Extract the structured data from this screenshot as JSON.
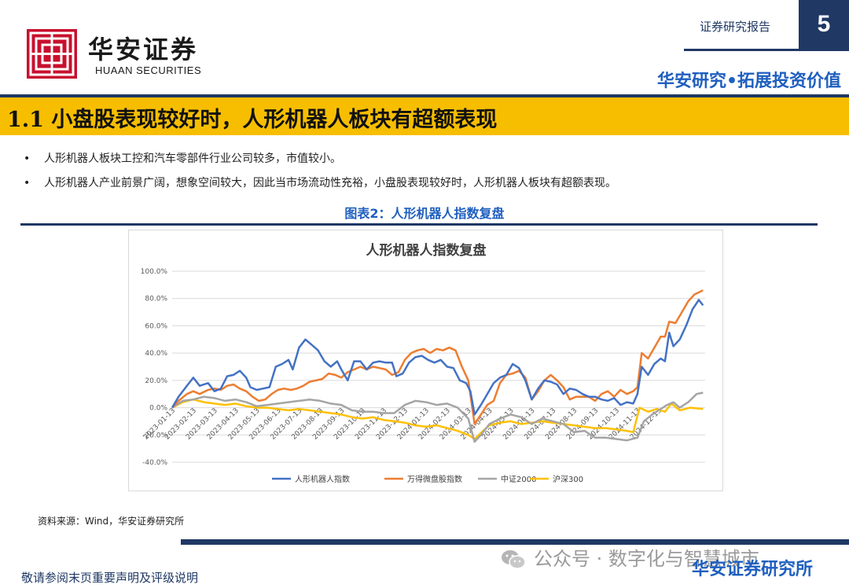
{
  "header": {
    "logo_cn": "华安证券",
    "logo_en": "HUAAN SECURITIES",
    "report_type": "证券研究报告",
    "page_number": "5",
    "slogan": "华安研究•拓展投资价值"
  },
  "section_title": "1.1 小盘股表现较好时，人形机器人板块有超额表现",
  "bullets": [
    "人形机器人板块工控和汽车零部件行业公司较多，市值较小。",
    "人形机器人产业前景广阔，想象空间较大，因此当市场流动性充裕，小盘股表现较好时，人形机器人板块有超额表现。"
  ],
  "bullet_marker": "•",
  "figure_title": "图表2：人形机器人指数复盘",
  "source": "资料来源：Wind，华安证券研究所",
  "footer": {
    "disclaimer": "敬请参阅末页重要声明及评级说明",
    "watermark": "公众号 · 数字化与智慧城市",
    "brand": "华安证券研究所"
  },
  "colors": {
    "navy": "#1f3864",
    "gold": "#f7be00",
    "blue_text": "#1f5fbf",
    "logo_red": "#c8102e"
  },
  "chart_data": {
    "type": "line",
    "title": "人形机器人指数复盘",
    "xlabel": "",
    "ylabel": "",
    "ylim": [
      -0.4,
      1.0
    ],
    "yticks": [
      -0.4,
      -0.2,
      0.0,
      0.2,
      0.4,
      0.6,
      0.8,
      1.0
    ],
    "ytick_labels": [
      "-40.0%",
      "-20.0%",
      "0.0%",
      "20.0%",
      "40.0%",
      "60.0%",
      "80.0%",
      "100.0%"
    ],
    "xtick_labels": [
      "2023-01-13",
      "2023-02-13",
      "2023-03-13",
      "2023-04-13",
      "2023-05-13",
      "2023-06-13",
      "2023-07-13",
      "2023-08-13",
      "2023-09-13",
      "2023-10-13",
      "2023-11-13",
      "2023-12-13",
      "2024-01-13",
      "2024-02-13",
      "2024-03-13",
      "2024-04-13",
      "2024-05-13",
      "2024-06-13",
      "2024-07-13",
      "2024-08-13",
      "2024-09-13",
      "2024-10-13",
      "2024-11-13",
      "2024-12-13"
    ],
    "legend_position": "bottom",
    "grid": true,
    "series": [
      {
        "name": "人形机器人指数",
        "color": "#4472c4",
        "points": [
          [
            0,
            0.0
          ],
          [
            0.3,
            0.08
          ],
          [
            0.7,
            0.16
          ],
          [
            1.0,
            0.22
          ],
          [
            1.3,
            0.16
          ],
          [
            1.7,
            0.18
          ],
          [
            2.0,
            0.12
          ],
          [
            2.3,
            0.14
          ],
          [
            2.6,
            0.23
          ],
          [
            2.9,
            0.24
          ],
          [
            3.2,
            0.27
          ],
          [
            3.5,
            0.22
          ],
          [
            3.7,
            0.15
          ],
          [
            4.0,
            0.13
          ],
          [
            4.3,
            0.14
          ],
          [
            4.6,
            0.15
          ],
          [
            4.9,
            0.3
          ],
          [
            5.2,
            0.32
          ],
          [
            5.5,
            0.35
          ],
          [
            5.7,
            0.28
          ],
          [
            6.0,
            0.44
          ],
          [
            6.3,
            0.5
          ],
          [
            6.6,
            0.46
          ],
          [
            6.9,
            0.42
          ],
          [
            7.2,
            0.34
          ],
          [
            7.5,
            0.3
          ],
          [
            7.8,
            0.34
          ],
          [
            8.0,
            0.28
          ],
          [
            8.3,
            0.2
          ],
          [
            8.6,
            0.34
          ],
          [
            8.9,
            0.34
          ],
          [
            9.2,
            0.28
          ],
          [
            9.5,
            0.33
          ],
          [
            9.8,
            0.34
          ],
          [
            10.1,
            0.33
          ],
          [
            10.4,
            0.33
          ],
          [
            10.6,
            0.23
          ],
          [
            10.9,
            0.25
          ],
          [
            11.2,
            0.33
          ],
          [
            11.5,
            0.37
          ],
          [
            11.8,
            0.38
          ],
          [
            12.1,
            0.35
          ],
          [
            12.4,
            0.33
          ],
          [
            12.7,
            0.35
          ],
          [
            13.0,
            0.3
          ],
          [
            13.3,
            0.29
          ],
          [
            13.6,
            0.2
          ],
          [
            13.9,
            0.18
          ],
          [
            14.1,
            0.12
          ],
          [
            14.3,
            -0.05
          ],
          [
            14.6,
            0.02
          ],
          [
            14.9,
            0.1
          ],
          [
            15.2,
            0.18
          ],
          [
            15.5,
            0.22
          ],
          [
            15.8,
            0.24
          ],
          [
            16.1,
            0.32
          ],
          [
            16.4,
            0.29
          ],
          [
            16.7,
            0.2
          ],
          [
            17.0,
            0.06
          ],
          [
            17.3,
            0.14
          ],
          [
            17.6,
            0.2
          ],
          [
            17.9,
            0.19
          ],
          [
            18.2,
            0.17
          ],
          [
            18.5,
            0.1
          ],
          [
            18.8,
            0.14
          ],
          [
            19.1,
            0.13
          ],
          [
            19.4,
            0.1
          ],
          [
            19.7,
            0.08
          ],
          [
            20.0,
            0.08
          ],
          [
            20.3,
            0.06
          ],
          [
            20.6,
            0.05
          ],
          [
            20.9,
            0.07
          ],
          [
            21.2,
            0.02
          ],
          [
            21.5,
            0.04
          ],
          [
            21.8,
            0.03
          ],
          [
            22.0,
            0.1
          ],
          [
            22.2,
            0.3
          ],
          [
            22.5,
            0.24
          ],
          [
            22.8,
            0.32
          ],
          [
            23.1,
            0.36
          ],
          [
            23.3,
            0.34
          ],
          [
            23.5,
            0.55
          ],
          [
            23.7,
            0.45
          ],
          [
            24.0,
            0.5
          ],
          [
            24.3,
            0.6
          ],
          [
            24.6,
            0.72
          ],
          [
            24.9,
            0.79
          ],
          [
            25.1,
            0.75
          ]
        ]
      },
      {
        "name": "万得微盘股指数",
        "color": "#ed7d31",
        "points": [
          [
            0,
            0.0
          ],
          [
            0.3,
            0.05
          ],
          [
            0.7,
            0.1
          ],
          [
            1.0,
            0.12
          ],
          [
            1.3,
            0.1
          ],
          [
            1.7,
            0.13
          ],
          [
            2.0,
            0.14
          ],
          [
            2.3,
            0.13
          ],
          [
            2.6,
            0.16
          ],
          [
            2.9,
            0.17
          ],
          [
            3.2,
            0.14
          ],
          [
            3.5,
            0.12
          ],
          [
            3.8,
            0.08
          ],
          [
            4.1,
            0.05
          ],
          [
            4.4,
            0.06
          ],
          [
            4.7,
            0.1
          ],
          [
            5.0,
            0.13
          ],
          [
            5.3,
            0.14
          ],
          [
            5.6,
            0.13
          ],
          [
            5.9,
            0.14
          ],
          [
            6.2,
            0.16
          ],
          [
            6.5,
            0.19
          ],
          [
            6.8,
            0.2
          ],
          [
            7.1,
            0.21
          ],
          [
            7.4,
            0.25
          ],
          [
            7.7,
            0.24
          ],
          [
            8.0,
            0.22
          ],
          [
            8.3,
            0.26
          ],
          [
            8.6,
            0.28
          ],
          [
            8.9,
            0.3
          ],
          [
            9.2,
            0.28
          ],
          [
            9.5,
            0.3
          ],
          [
            9.8,
            0.29
          ],
          [
            10.1,
            0.28
          ],
          [
            10.4,
            0.24
          ],
          [
            10.7,
            0.26
          ],
          [
            11.0,
            0.35
          ],
          [
            11.3,
            0.4
          ],
          [
            11.6,
            0.42
          ],
          [
            11.9,
            0.43
          ],
          [
            12.2,
            0.4
          ],
          [
            12.5,
            0.43
          ],
          [
            12.8,
            0.42
          ],
          [
            13.1,
            0.44
          ],
          [
            13.4,
            0.42
          ],
          [
            13.7,
            0.3
          ],
          [
            14.0,
            0.2
          ],
          [
            14.3,
            -0.12
          ],
          [
            14.6,
            -0.05
          ],
          [
            14.9,
            0.02
          ],
          [
            15.2,
            0.05
          ],
          [
            15.5,
            0.18
          ],
          [
            15.8,
            0.24
          ],
          [
            16.1,
            0.25
          ],
          [
            16.4,
            0.27
          ],
          [
            16.7,
            0.22
          ],
          [
            17.0,
            0.06
          ],
          [
            17.3,
            0.12
          ],
          [
            17.6,
            0.2
          ],
          [
            17.9,
            0.24
          ],
          [
            18.2,
            0.2
          ],
          [
            18.5,
            0.15
          ],
          [
            18.8,
            0.06
          ],
          [
            19.1,
            0.08
          ],
          [
            19.4,
            0.08
          ],
          [
            19.7,
            0.08
          ],
          [
            20.0,
            0.05
          ],
          [
            20.3,
            0.1
          ],
          [
            20.6,
            0.12
          ],
          [
            20.9,
            0.08
          ],
          [
            21.2,
            0.13
          ],
          [
            21.5,
            0.1
          ],
          [
            21.8,
            0.12
          ],
          [
            22.0,
            0.15
          ],
          [
            22.2,
            0.4
          ],
          [
            22.5,
            0.36
          ],
          [
            22.8,
            0.44
          ],
          [
            23.1,
            0.52
          ],
          [
            23.3,
            0.52
          ],
          [
            23.5,
            0.63
          ],
          [
            23.8,
            0.62
          ],
          [
            24.1,
            0.7
          ],
          [
            24.4,
            0.78
          ],
          [
            24.7,
            0.83
          ],
          [
            25.1,
            0.86
          ]
        ]
      },
      {
        "name": "中证2000",
        "color": "#a5a5a5",
        "points": [
          [
            0,
            0.0
          ],
          [
            0.5,
            0.05
          ],
          [
            1.0,
            0.06
          ],
          [
            1.5,
            0.08
          ],
          [
            2.0,
            0.07
          ],
          [
            2.5,
            0.05
          ],
          [
            3.0,
            0.06
          ],
          [
            3.5,
            0.04
          ],
          [
            4.0,
            0.01
          ],
          [
            4.5,
            0.02
          ],
          [
            5.0,
            0.03
          ],
          [
            5.5,
            0.04
          ],
          [
            6.0,
            0.05
          ],
          [
            6.5,
            0.06
          ],
          [
            7.0,
            0.05
          ],
          [
            7.5,
            0.03
          ],
          [
            8.0,
            0.02
          ],
          [
            8.5,
            -0.02
          ],
          [
            9.0,
            -0.03
          ],
          [
            9.5,
            -0.03
          ],
          [
            10.0,
            -0.04
          ],
          [
            10.5,
            -0.04
          ],
          [
            11.0,
            0.02
          ],
          [
            11.5,
            0.05
          ],
          [
            12.0,
            0.04
          ],
          [
            12.5,
            0.02
          ],
          [
            13.0,
            0.03
          ],
          [
            13.5,
            0.0
          ],
          [
            14.0,
            -0.08
          ],
          [
            14.3,
            -0.25
          ],
          [
            14.6,
            -0.2
          ],
          [
            15.0,
            -0.12
          ],
          [
            15.5,
            -0.08
          ],
          [
            16.0,
            -0.05
          ],
          [
            16.5,
            -0.07
          ],
          [
            17.0,
            -0.12
          ],
          [
            17.5,
            -0.08
          ],
          [
            18.0,
            -0.1
          ],
          [
            18.5,
            -0.12
          ],
          [
            19.0,
            -0.18
          ],
          [
            19.5,
            -0.17
          ],
          [
            20.0,
            -0.22
          ],
          [
            20.5,
            -0.22
          ],
          [
            21.0,
            -0.23
          ],
          [
            21.5,
            -0.24
          ],
          [
            22.0,
            -0.22
          ],
          [
            22.3,
            -0.1
          ],
          [
            22.7,
            -0.05
          ],
          [
            23.0,
            -0.02
          ],
          [
            23.4,
            0.02
          ],
          [
            23.7,
            0.04
          ],
          [
            24.0,
            0.0
          ],
          [
            24.4,
            0.04
          ],
          [
            24.8,
            0.1
          ],
          [
            25.1,
            0.11
          ]
        ]
      },
      {
        "name": "沪深300",
        "color": "#ffc000",
        "points": [
          [
            0,
            0.0
          ],
          [
            0.5,
            0.04
          ],
          [
            1.0,
            0.06
          ],
          [
            1.5,
            0.04
          ],
          [
            2.0,
            0.03
          ],
          [
            2.5,
            0.02
          ],
          [
            3.0,
            0.03
          ],
          [
            3.5,
            0.01
          ],
          [
            4.0,
            0.0
          ],
          [
            4.5,
            0.0
          ],
          [
            5.0,
            -0.01
          ],
          [
            5.5,
            -0.02
          ],
          [
            6.0,
            -0.01
          ],
          [
            6.5,
            -0.02
          ],
          [
            7.0,
            -0.03
          ],
          [
            7.5,
            -0.04
          ],
          [
            8.0,
            -0.05
          ],
          [
            8.5,
            -0.07
          ],
          [
            9.0,
            -0.08
          ],
          [
            9.5,
            -0.07
          ],
          [
            10.0,
            -0.09
          ],
          [
            10.5,
            -0.1
          ],
          [
            11.0,
            -0.11
          ],
          [
            11.5,
            -0.13
          ],
          [
            12.0,
            -0.14
          ],
          [
            12.5,
            -0.13
          ],
          [
            13.0,
            -0.15
          ],
          [
            13.5,
            -0.17
          ],
          [
            14.0,
            -0.2
          ],
          [
            14.3,
            -0.23
          ],
          [
            14.7,
            -0.17
          ],
          [
            15.0,
            -0.13
          ],
          [
            15.5,
            -0.11
          ],
          [
            16.0,
            -0.1
          ],
          [
            16.5,
            -0.12
          ],
          [
            17.0,
            -0.11
          ],
          [
            17.5,
            -0.1
          ],
          [
            18.0,
            -0.11
          ],
          [
            18.5,
            -0.12
          ],
          [
            19.0,
            -0.13
          ],
          [
            19.5,
            -0.14
          ],
          [
            20.0,
            -0.15
          ],
          [
            20.5,
            -0.15
          ],
          [
            21.0,
            -0.16
          ],
          [
            21.5,
            -0.17
          ],
          [
            21.8,
            -0.18
          ],
          [
            22.1,
            0.0
          ],
          [
            22.5,
            -0.03
          ],
          [
            22.9,
            -0.01
          ],
          [
            23.3,
            -0.03
          ],
          [
            23.6,
            0.03
          ],
          [
            24.0,
            -0.02
          ],
          [
            24.5,
            0.0
          ],
          [
            25.1,
            -0.01
          ]
        ]
      }
    ]
  }
}
